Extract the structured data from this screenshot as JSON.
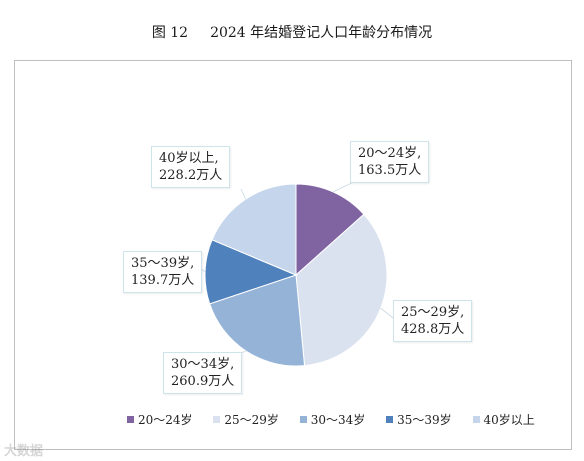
{
  "figure": {
    "number": "图 12",
    "title": "2024 年结婚登记人口年龄分布情况"
  },
  "chart_data": {
    "type": "pie",
    "title": "2024 年结婚登记人口年龄分布情况",
    "start_angle_deg": 0,
    "direction": "clockwise",
    "legend_position": "bottom",
    "slices": [
      {
        "label": "20～24岁",
        "value": 163.5,
        "value_label": "163.5万人",
        "color": "#8064a2"
      },
      {
        "label": "25～29岁",
        "value": 428.8,
        "value_label": "428.8万人",
        "color": "#dbe2ef"
      },
      {
        "label": "30～34岁",
        "value": 260.9,
        "value_label": "260.9万人",
        "color": "#95b3d7"
      },
      {
        "label": "35～39岁",
        "value": 139.7,
        "value_label": "139.7万人",
        "color": "#4f81bd"
      },
      {
        "label": "40岁以上",
        "value": 228.2,
        "value_label": "228.2万人",
        "color": "#c5d6ec"
      }
    ]
  },
  "callouts": [
    {
      "line1": "20～24岁,",
      "line2": "163.5万人"
    },
    {
      "line1": "25～29岁,",
      "line2": "428.8万人"
    },
    {
      "line1": "30～34岁,",
      "line2": "260.9万人"
    },
    {
      "line1": "35～39岁,",
      "line2": "139.7万人"
    },
    {
      "line1": "40岁以上,",
      "line2": "228.2万人"
    }
  ],
  "legend": [
    "20～24岁",
    "25～29岁",
    "30～34岁",
    "35～39岁",
    "40岁以上"
  ],
  "watermark": "大数据"
}
